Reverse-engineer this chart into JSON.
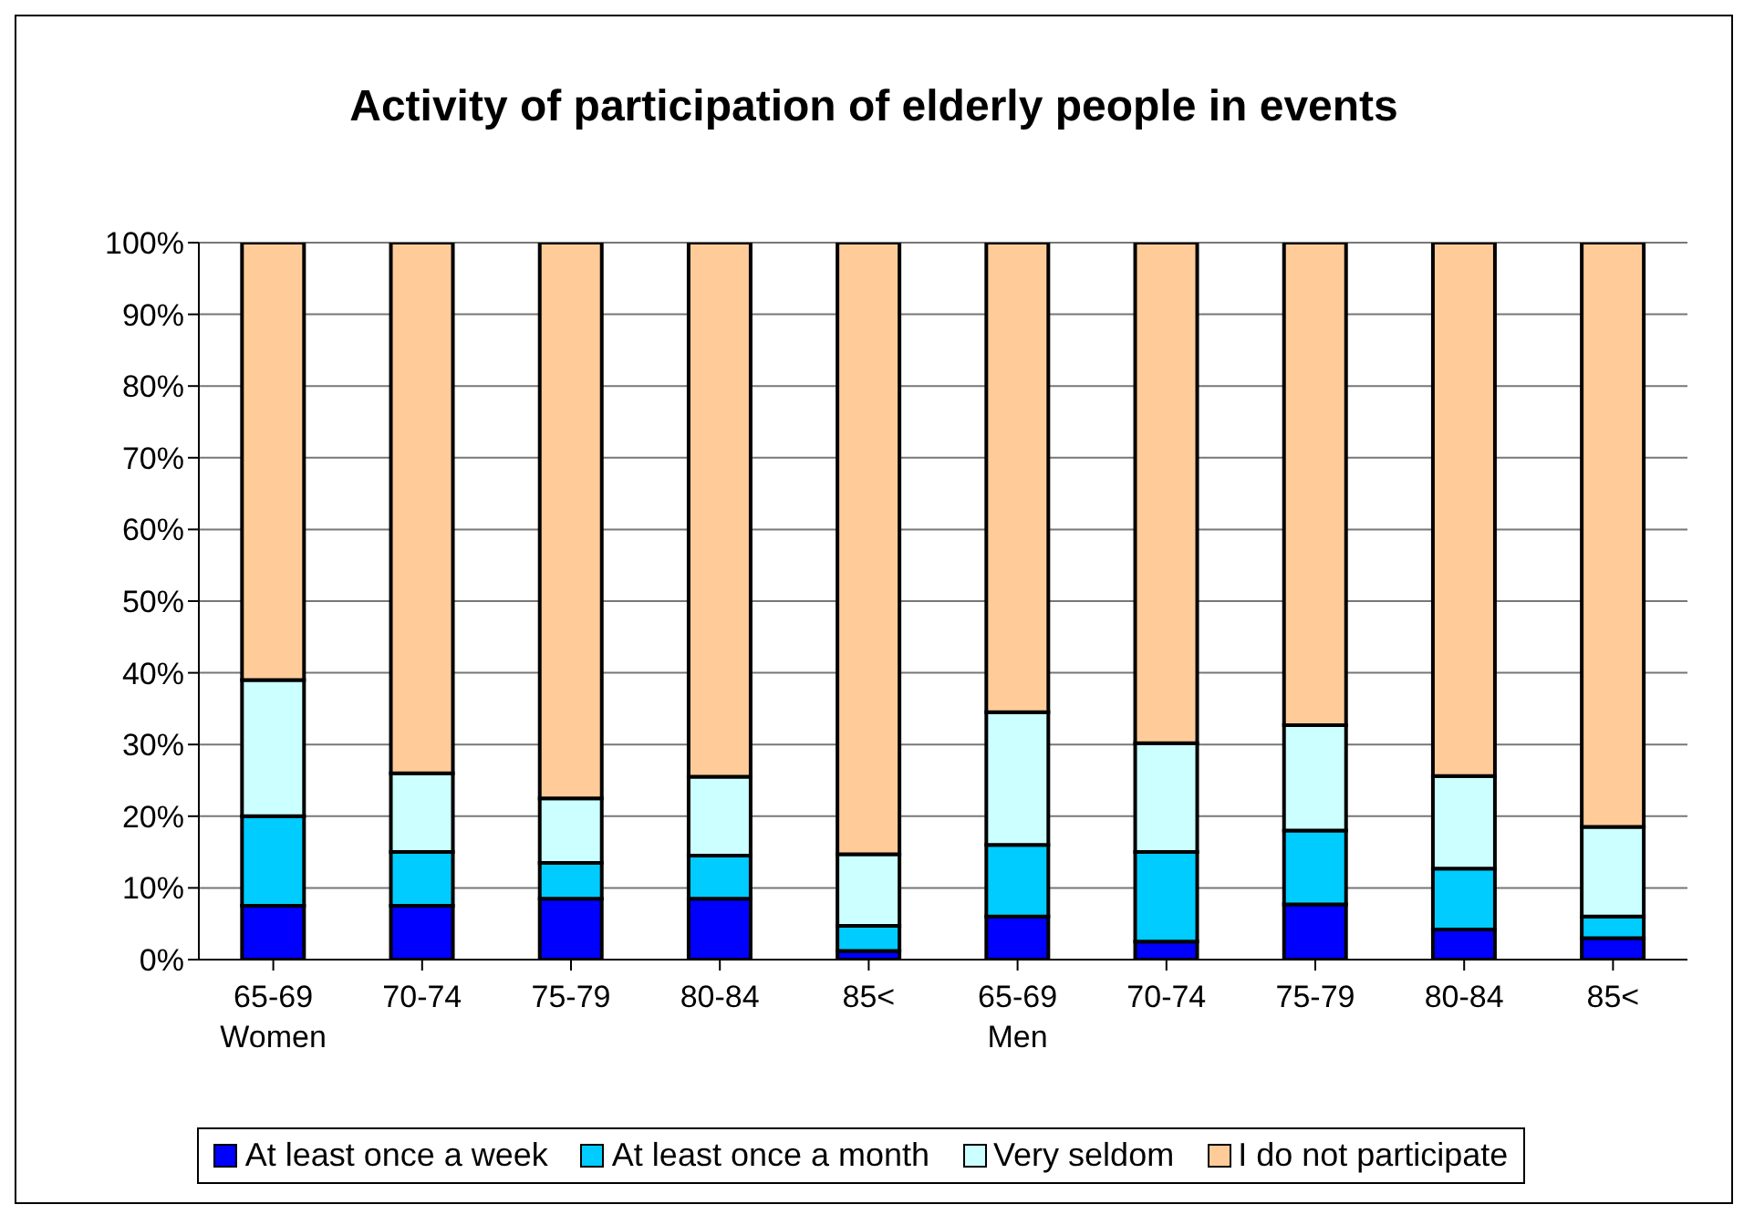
{
  "chart_data": {
    "type": "bar",
    "title": "Activity of participation of elderly people in events",
    "stacked": true,
    "categories": [
      "65-69\nWomen",
      "70-74",
      "75-79",
      "80-84",
      "85<",
      "65-69\nMen",
      "70-74",
      "75-79",
      "80-84",
      "85<"
    ],
    "series": [
      {
        "name": "At least once a week",
        "color": "#0000ff",
        "values": [
          7.5,
          7.5,
          8.5,
          8.5,
          1.2,
          6,
          2.5,
          7.7,
          4.2,
          3
        ]
      },
      {
        "name": "At least once a month",
        "color": "#00ccff",
        "values": [
          12.5,
          7.5,
          5,
          6,
          3.5,
          10,
          12.5,
          10.3,
          8.5,
          3
        ]
      },
      {
        "name": "Very seldom",
        "color": "#ccffff",
        "values": [
          19,
          11,
          9,
          11,
          10,
          18.5,
          15.2,
          14.7,
          12.9,
          12.5
        ]
      },
      {
        "name": "I do not participate",
        "color": "#ffcc99",
        "values": [
          61,
          74,
          77.5,
          74.5,
          85.3,
          65.5,
          69.8,
          67.3,
          74.4,
          81.5
        ]
      }
    ],
    "ylim": [
      0,
      100
    ],
    "yticks": [
      {
        "value": 0,
        "label": "0%"
      },
      {
        "value": 10,
        "label": "10%"
      },
      {
        "value": 20,
        "label": "20%"
      },
      {
        "value": 30,
        "label": "30%"
      },
      {
        "value": 40,
        "label": "40%"
      },
      {
        "value": 50,
        "label": "50%"
      },
      {
        "value": 60,
        "label": "60%"
      },
      {
        "value": 70,
        "label": "70%"
      },
      {
        "value": 80,
        "label": "80%"
      },
      {
        "value": 90,
        "label": "90%"
      },
      {
        "value": 100,
        "label": "100%"
      }
    ],
    "grid": "y",
    "legend": "bottom"
  }
}
